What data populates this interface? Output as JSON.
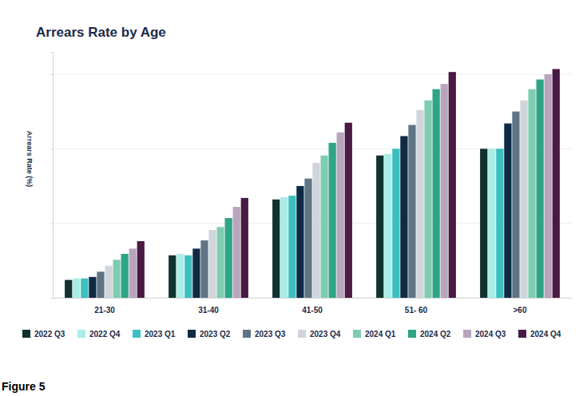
{
  "chart_data": {
    "type": "bar",
    "title": "Arrears Rate by Age",
    "y_label": "Arrears Rate (%)",
    "annotations": [
      "Figure 5"
    ],
    "categories": [
      "21-30",
      "31-40",
      "41-50",
      "51- 60",
      ">60"
    ],
    "series": [
      {
        "name": "2022 Q3",
        "color": "#10332f",
        "values": [
          0.24,
          0.57,
          1.32,
          1.91,
          2.0
        ]
      },
      {
        "name": "2022 Q4",
        "color": "#a9ece8",
        "values": [
          0.26,
          0.59,
          1.35,
          1.93,
          2.0
        ]
      },
      {
        "name": "2023 Q1",
        "color": "#3dbfc1",
        "values": [
          0.26,
          0.57,
          1.37,
          2.0,
          2.0
        ]
      },
      {
        "name": "2023 Q2",
        "color": "#0e2a45",
        "values": [
          0.28,
          0.66,
          1.5,
          2.17,
          2.34
        ]
      },
      {
        "name": "2023 Q3",
        "color": "#5f7484",
        "values": [
          0.35,
          0.77,
          1.6,
          2.32,
          2.5
        ]
      },
      {
        "name": "2023 Q4",
        "color": "#cfd5da",
        "values": [
          0.43,
          0.91,
          1.81,
          2.52,
          2.65
        ]
      },
      {
        "name": "2024 Q1",
        "color": "#80ccb1",
        "values": [
          0.51,
          0.95,
          1.91,
          2.65,
          2.8
        ]
      },
      {
        "name": "2024 Q2",
        "color": "#2ea586",
        "values": [
          0.59,
          1.07,
          2.08,
          2.8,
          2.93
        ]
      },
      {
        "name": "2024 Q3",
        "color": "#b9a5bb",
        "values": [
          0.66,
          1.22,
          2.22,
          2.87,
          3.0
        ]
      },
      {
        "name": "2024 Q4",
        "color": "#4a1a45",
        "values": [
          0.76,
          1.34,
          2.35,
          3.03,
          3.07
        ]
      }
    ],
    "ylim": [
      0,
      3.3
    ],
    "yticks": [
      0,
      1,
      2,
      3
    ],
    "grid": true,
    "legend": "bottom",
    "tick_labels": "x"
  }
}
